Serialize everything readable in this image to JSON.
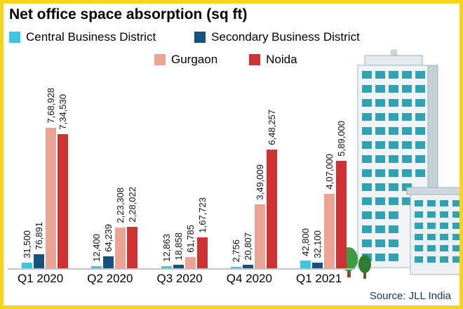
{
  "title": "Net office space absorption (sq ft)",
  "source": "Source: JLL India",
  "colors": {
    "cbd": "#3cc7e0",
    "sbd": "#15537e",
    "gurgaon": "#e9a493",
    "noida": "#ce3232",
    "border": "#f6d31c",
    "window": "#2fa3b4"
  },
  "chart_data": {
    "type": "bar",
    "title": "Net office space absorption (sq ft)",
    "categories": [
      "Q1 2020",
      "Q2 2020",
      "Q3 2020",
      "Q4 2020",
      "Q1 2021"
    ],
    "series": [
      {
        "name": "Central Business District",
        "color_key": "cbd",
        "values": [
          31500,
          12400,
          12863,
          2756,
          42800
        ],
        "labels": [
          "31,500",
          "12,400",
          "12,863",
          "2,756",
          "42,800"
        ]
      },
      {
        "name": "Secondary Business District",
        "color_key": "sbd",
        "values": [
          76891,
          64239,
          18858,
          20807,
          32100
        ],
        "labels": [
          "76,891",
          "64,239",
          "18,858",
          "20,807",
          "32,100"
        ]
      },
      {
        "name": "Gurgaon",
        "color_key": "gurgaon",
        "values": [
          768928,
          223308,
          61785,
          349009,
          407000
        ],
        "labels": [
          "7,68,928",
          "2,23,308",
          "61,785",
          "3,49,009",
          "4,07,000"
        ]
      },
      {
        "name": "Noida",
        "color_key": "noida",
        "values": [
          734530,
          228022,
          167723,
          648257,
          589000
        ],
        "labels": [
          "7,34,530",
          "2,28,022",
          "1,67,723",
          "6,48,257",
          "5,89,000"
        ]
      }
    ],
    "ylim": [
      0,
      800000
    ],
    "grid": false,
    "legend_position": "top",
    "value_labels": "rotated-90"
  }
}
